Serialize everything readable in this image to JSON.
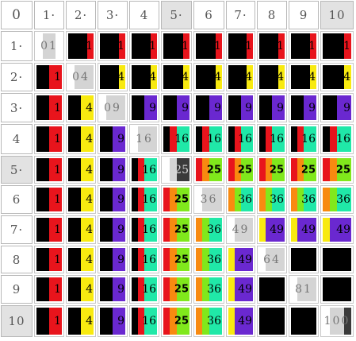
{
  "corner_label": "0",
  "col_headers": [
    "1·",
    "2·",
    "3·",
    "4",
    "5·",
    "6",
    "7·",
    "8",
    "9",
    "10"
  ],
  "row_headers": [
    "1·",
    "2·",
    "3·",
    "4",
    "5·",
    "6",
    "7·",
    "8",
    "9",
    "10"
  ],
  "highlight_cols": [
    5,
    10
  ],
  "highlight_rows": [
    5,
    10
  ],
  "palette": {
    "black": "#000000",
    "red": "#e8141c",
    "yellow": "#f8ea10",
    "purple": "#6a28d0",
    "teal": "#20e8a8",
    "orange": "#f88a10",
    "lime": "#80e81c",
    "light": "#d4d4d4",
    "white": "#ffffff",
    "dark": "#3a3a3a"
  },
  "cells": [
    [
      {
        "text": "01",
        "style": "diag",
        "bars": [
          "white",
          "light",
          "light",
          "white"
        ]
      },
      {
        "text": "1",
        "bars": [
          "black",
          "black",
          "black",
          "red"
        ]
      },
      {
        "text": "1",
        "bars": [
          "black",
          "black",
          "black",
          "red"
        ]
      },
      {
        "text": "1",
        "bars": [
          "black",
          "black",
          "black",
          "red"
        ]
      },
      {
        "text": "1",
        "bars": [
          "black",
          "black",
          "black",
          "red"
        ]
      },
      {
        "text": "1",
        "bars": [
          "black",
          "black",
          "black",
          "red"
        ]
      },
      {
        "text": "1",
        "bars": [
          "black",
          "black",
          "black",
          "red"
        ]
      },
      {
        "text": "1",
        "bars": [
          "black",
          "black",
          "black",
          "red"
        ]
      },
      {
        "text": "1",
        "bars": [
          "black",
          "black",
          "black",
          "red"
        ]
      },
      {
        "text": "1",
        "bars": [
          "black",
          "black",
          "black",
          "red"
        ]
      }
    ],
    [
      {
        "text": "1",
        "bars": [
          "black",
          "black",
          "red",
          "red"
        ]
      },
      {
        "text": "04",
        "style": "diag",
        "bars": [
          "white",
          "light",
          "light",
          "light"
        ]
      },
      {
        "text": "4",
        "bars": [
          "black",
          "black",
          "black",
          "yellow"
        ]
      },
      {
        "text": "4",
        "bars": [
          "black",
          "black",
          "black",
          "yellow"
        ]
      },
      {
        "text": "4",
        "bars": [
          "black",
          "black",
          "black",
          "yellow"
        ]
      },
      {
        "text": "4",
        "bars": [
          "black",
          "black",
          "black",
          "yellow"
        ]
      },
      {
        "text": "4",
        "bars": [
          "black",
          "black",
          "black",
          "yellow"
        ]
      },
      {
        "text": "4",
        "bars": [
          "black",
          "black",
          "black",
          "yellow"
        ]
      },
      {
        "text": "4",
        "bars": [
          "black",
          "black",
          "black",
          "yellow"
        ]
      },
      {
        "text": "4",
        "bars": [
          "black",
          "black",
          "black",
          "yellow"
        ]
      }
    ],
    [
      {
        "text": "1",
        "bars": [
          "black",
          "black",
          "red",
          "red"
        ]
      },
      {
        "text": "4",
        "bars": [
          "black",
          "black",
          "yellow",
          "yellow"
        ]
      },
      {
        "text": "09",
        "style": "diag",
        "bars": [
          "white",
          "light",
          "light",
          "light"
        ]
      },
      {
        "text": "9",
        "bars": [
          "black",
          "black",
          "purple",
          "purple"
        ]
      },
      {
        "text": "9",
        "bars": [
          "black",
          "black",
          "purple",
          "purple"
        ]
      },
      {
        "text": "9",
        "bars": [
          "black",
          "black",
          "purple",
          "purple"
        ]
      },
      {
        "text": "9",
        "bars": [
          "black",
          "black",
          "purple",
          "purple"
        ]
      },
      {
        "text": "9",
        "bars": [
          "black",
          "black",
          "purple",
          "purple"
        ]
      },
      {
        "text": "9",
        "bars": [
          "black",
          "black",
          "purple",
          "purple"
        ]
      },
      {
        "text": "9",
        "bars": [
          "black",
          "black",
          "purple",
          "purple"
        ]
      }
    ],
    [
      {
        "text": "1",
        "bars": [
          "black",
          "black",
          "red",
          "red"
        ]
      },
      {
        "text": "4",
        "bars": [
          "black",
          "black",
          "yellow",
          "yellow"
        ]
      },
      {
        "text": "9",
        "bars": [
          "black",
          "black",
          "purple",
          "purple"
        ]
      },
      {
        "text": "16",
        "style": "diag",
        "bars": [
          "white",
          "light",
          "light",
          "light"
        ]
      },
      {
        "text": "16",
        "bars": [
          "black",
          "red",
          "teal",
          "teal"
        ]
      },
      {
        "text": "16",
        "bars": [
          "black",
          "red",
          "teal",
          "teal"
        ]
      },
      {
        "text": "16",
        "bars": [
          "black",
          "red",
          "teal",
          "teal"
        ]
      },
      {
        "text": "16",
        "bars": [
          "black",
          "red",
          "teal",
          "teal"
        ]
      },
      {
        "text": "16",
        "bars": [
          "black",
          "red",
          "teal",
          "teal"
        ]
      },
      {
        "text": "16",
        "bars": [
          "black",
          "red",
          "teal",
          "teal"
        ]
      }
    ],
    [
      {
        "text": "1",
        "bars": [
          "black",
          "black",
          "red",
          "red"
        ]
      },
      {
        "text": "4",
        "bars": [
          "black",
          "black",
          "yellow",
          "yellow"
        ]
      },
      {
        "text": "9",
        "bars": [
          "black",
          "black",
          "purple",
          "purple"
        ]
      },
      {
        "text": "16",
        "bars": [
          "black",
          "red",
          "teal",
          "teal"
        ]
      },
      {
        "text": "25",
        "style": "lightnum",
        "bars": [
          "white",
          "light",
          "dark",
          "dark"
        ]
      },
      {
        "text": "25",
        "style": "bold",
        "bars": [
          "red",
          "orange",
          "lime",
          "lime"
        ]
      },
      {
        "text": "25",
        "style": "bold",
        "bars": [
          "red",
          "orange",
          "lime",
          "lime"
        ]
      },
      {
        "text": "25",
        "style": "bold",
        "bars": [
          "red",
          "orange",
          "lime",
          "lime"
        ]
      },
      {
        "text": "25",
        "style": "bold",
        "bars": [
          "red",
          "orange",
          "lime",
          "lime"
        ]
      },
      {
        "text": "25",
        "style": "bold",
        "bars": [
          "red",
          "orange",
          "lime",
          "lime"
        ]
      }
    ],
    [
      {
        "text": "1",
        "bars": [
          "black",
          "black",
          "red",
          "red"
        ]
      },
      {
        "text": "4",
        "bars": [
          "black",
          "black",
          "yellow",
          "yellow"
        ]
      },
      {
        "text": "9",
        "bars": [
          "black",
          "black",
          "purple",
          "purple"
        ]
      },
      {
        "text": "16",
        "bars": [
          "black",
          "red",
          "teal",
          "teal"
        ]
      },
      {
        "text": "25",
        "style": "bold",
        "bars": [
          "red",
          "orange",
          "lime",
          "lime"
        ]
      },
      {
        "text": "36",
        "style": "diag",
        "bars": [
          "white",
          "light",
          "light",
          "light"
        ]
      },
      {
        "text": "36",
        "bars": [
          "orange",
          "lime",
          "teal",
          "teal"
        ]
      },
      {
        "text": "36",
        "bars": [
          "orange",
          "lime",
          "teal",
          "teal"
        ]
      },
      {
        "text": "36",
        "bars": [
          "orange",
          "lime",
          "teal",
          "teal"
        ]
      },
      {
        "text": "36",
        "bars": [
          "orange",
          "lime",
          "teal",
          "teal"
        ]
      }
    ],
    [
      {
        "text": "1",
        "bars": [
          "black",
          "black",
          "red",
          "red"
        ]
      },
      {
        "text": "4",
        "bars": [
          "black",
          "black",
          "yellow",
          "yellow"
        ]
      },
      {
        "text": "9",
        "bars": [
          "black",
          "black",
          "purple",
          "purple"
        ]
      },
      {
        "text": "16",
        "bars": [
          "black",
          "red",
          "teal",
          "teal"
        ]
      },
      {
        "text": "25",
        "style": "bold",
        "bars": [
          "red",
          "orange",
          "lime",
          "lime"
        ]
      },
      {
        "text": "36",
        "bars": [
          "orange",
          "lime",
          "teal",
          "teal"
        ]
      },
      {
        "text": "49",
        "style": "diag",
        "bars": [
          "white",
          "light",
          "light",
          "light"
        ]
      },
      {
        "text": "49",
        "bars": [
          "yellow",
          "purple",
          "purple",
          "purple"
        ]
      },
      {
        "text": "49",
        "bars": [
          "yellow",
          "purple",
          "purple",
          "purple"
        ]
      },
      {
        "text": "49",
        "bars": [
          "yellow",
          "purple",
          "purple",
          "purple"
        ]
      }
    ],
    [
      {
        "text": "1",
        "bars": [
          "black",
          "black",
          "red",
          "red"
        ]
      },
      {
        "text": "4",
        "bars": [
          "black",
          "black",
          "yellow",
          "yellow"
        ]
      },
      {
        "text": "9",
        "bars": [
          "black",
          "black",
          "purple",
          "purple"
        ]
      },
      {
        "text": "16",
        "bars": [
          "black",
          "red",
          "teal",
          "teal"
        ]
      },
      {
        "text": "25",
        "style": "bold",
        "bars": [
          "red",
          "orange",
          "lime",
          "lime"
        ]
      },
      {
        "text": "36",
        "bars": [
          "orange",
          "lime",
          "teal",
          "teal"
        ]
      },
      {
        "text": "49",
        "bars": [
          "yellow",
          "purple",
          "purple",
          "purple"
        ]
      },
      {
        "text": "64",
        "style": "diag",
        "bars": [
          "white",
          "light",
          "light",
          "light"
        ]
      },
      {
        "text": "",
        "bars": [
          "black",
          "black",
          "black",
          "black"
        ]
      },
      {
        "text": "",
        "bars": [
          "black",
          "black",
          "black",
          "black"
        ]
      }
    ],
    [
      {
        "text": "1",
        "bars": [
          "black",
          "black",
          "red",
          "red"
        ]
      },
      {
        "text": "4",
        "bars": [
          "black",
          "black",
          "yellow",
          "yellow"
        ]
      },
      {
        "text": "9",
        "bars": [
          "black",
          "black",
          "purple",
          "purple"
        ]
      },
      {
        "text": "16",
        "bars": [
          "black",
          "red",
          "teal",
          "teal"
        ]
      },
      {
        "text": "25",
        "style": "bold",
        "bars": [
          "red",
          "orange",
          "lime",
          "lime"
        ]
      },
      {
        "text": "36",
        "bars": [
          "orange",
          "lime",
          "teal",
          "teal"
        ]
      },
      {
        "text": "49",
        "bars": [
          "yellow",
          "purple",
          "purple",
          "purple"
        ]
      },
      {
        "text": "",
        "bars": [
          "black",
          "black",
          "black",
          "black"
        ]
      },
      {
        "text": "81",
        "style": "diag",
        "bars": [
          "white",
          "light",
          "light",
          "light"
        ]
      },
      {
        "text": "",
        "bars": [
          "black",
          "black",
          "black",
          "black"
        ]
      }
    ],
    [
      {
        "text": "1",
        "bars": [
          "black",
          "black",
          "red",
          "red"
        ]
      },
      {
        "text": "4",
        "bars": [
          "black",
          "black",
          "yellow",
          "yellow"
        ]
      },
      {
        "text": "9",
        "bars": [
          "black",
          "black",
          "purple",
          "purple"
        ]
      },
      {
        "text": "16",
        "bars": [
          "black",
          "red",
          "teal",
          "teal"
        ]
      },
      {
        "text": "25",
        "style": "bold",
        "bars": [
          "red",
          "orange",
          "lime",
          "lime"
        ]
      },
      {
        "text": "36",
        "bars": [
          "orange",
          "lime",
          "teal",
          "teal"
        ]
      },
      {
        "text": "49",
        "bars": [
          "yellow",
          "purple",
          "purple",
          "purple"
        ]
      },
      {
        "text": "",
        "bars": [
          "black",
          "black",
          "black",
          "black"
        ]
      },
      {
        "text": "",
        "bars": [
          "black",
          "black",
          "black",
          "black"
        ]
      },
      {
        "text": "100",
        "style": "diag",
        "bars": [
          "white",
          "light",
          "light",
          "dark"
        ]
      }
    ]
  ]
}
